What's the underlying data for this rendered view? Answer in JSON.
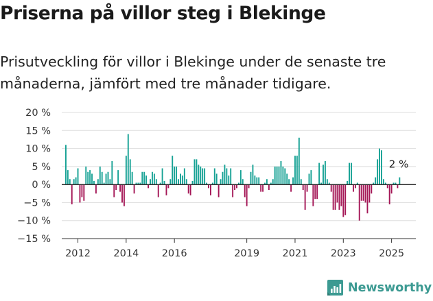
{
  "title": "Priserna på villor steg i Blekinge",
  "subtitle": "Prisutveckling för villor i Blekinge under de senaste tre månaderna, jämfört med tre månader tidigare.",
  "brand": {
    "name": "Newsworthy",
    "icon": "newsworthy-logo-icon"
  },
  "colors": {
    "positive": "#17a295",
    "negative": "#a41656",
    "axis": "#333333",
    "grid": "#dedede"
  },
  "chart_data": {
    "type": "bar",
    "ylim": [
      -15,
      20
    ],
    "y_ticks": [
      -15,
      -10,
      -5,
      0,
      5,
      10,
      15,
      20
    ],
    "y_tick_labels": [
      "−15 %",
      "−10 %",
      "−5 %",
      "0 %",
      "5 %",
      "10 %",
      "15 %",
      "20 %"
    ],
    "x_tick_labels": [
      "2012",
      "2014",
      "2016",
      "2019",
      "2021",
      "2023",
      "2025"
    ],
    "x_tick_index": [
      6,
      30,
      54,
      90,
      114,
      138,
      162
    ],
    "grid": true,
    "last_value_label": "2 %",
    "values": [
      11,
      4,
      1.5,
      -5.5,
      1.5,
      2,
      4.5,
      -5,
      -3.5,
      -4.5,
      5,
      3.5,
      4,
      3,
      1,
      -2.5,
      1.5,
      5,
      3.5,
      0.5,
      3,
      3.5,
      1.5,
      6.5,
      -3.5,
      -1.5,
      4,
      -2,
      -5,
      -6,
      8,
      14,
      7,
      3.5,
      -2.5,
      0.5,
      0.5,
      0.5,
      3.5,
      3.5,
      2.5,
      -1,
      1.5,
      3.5,
      3,
      1.5,
      -3.5,
      0.5,
      4.5,
      1,
      -3,
      -1,
      1.5,
      8,
      5,
      5,
      1.5,
      3,
      2.5,
      4.5,
      1.5,
      -2.5,
      -3,
      1,
      7,
      7,
      5.5,
      5,
      4.5,
      4.5,
      0.5,
      -1,
      -3,
      0.5,
      4.5,
      3,
      -3.5,
      1.5,
      3.5,
      5.5,
      4.5,
      2.5,
      4.5,
      -3.5,
      -1.5,
      -1,
      0.5,
      4,
      1.5,
      -3.5,
      -6,
      -1,
      3.5,
      5.5,
      2.5,
      2,
      2,
      -2,
      -2,
      0.5,
      1.5,
      -1.5,
      0.5,
      1.5,
      5,
      5,
      5,
      6.5,
      5,
      4.5,
      3,
      1.5,
      -2,
      2,
      8,
      8,
      13,
      1.5,
      -1.5,
      -7,
      -2,
      3,
      4,
      -6,
      -4,
      -4,
      6,
      0.5,
      5.5,
      6.5,
      1.5,
      0.5,
      -2,
      -7,
      -7,
      -5,
      -7,
      -6,
      -9,
      -8.5,
      1,
      6,
      6,
      -2,
      -1,
      0.5,
      -10,
      -4.5,
      -4.5,
      -5,
      -8,
      -5,
      -2.5,
      0.5,
      2,
      7,
      10,
      9.5,
      1.5,
      0.5,
      -1,
      -5.5,
      -2.5,
      0.5,
      0.5,
      -1,
      2
    ]
  }
}
